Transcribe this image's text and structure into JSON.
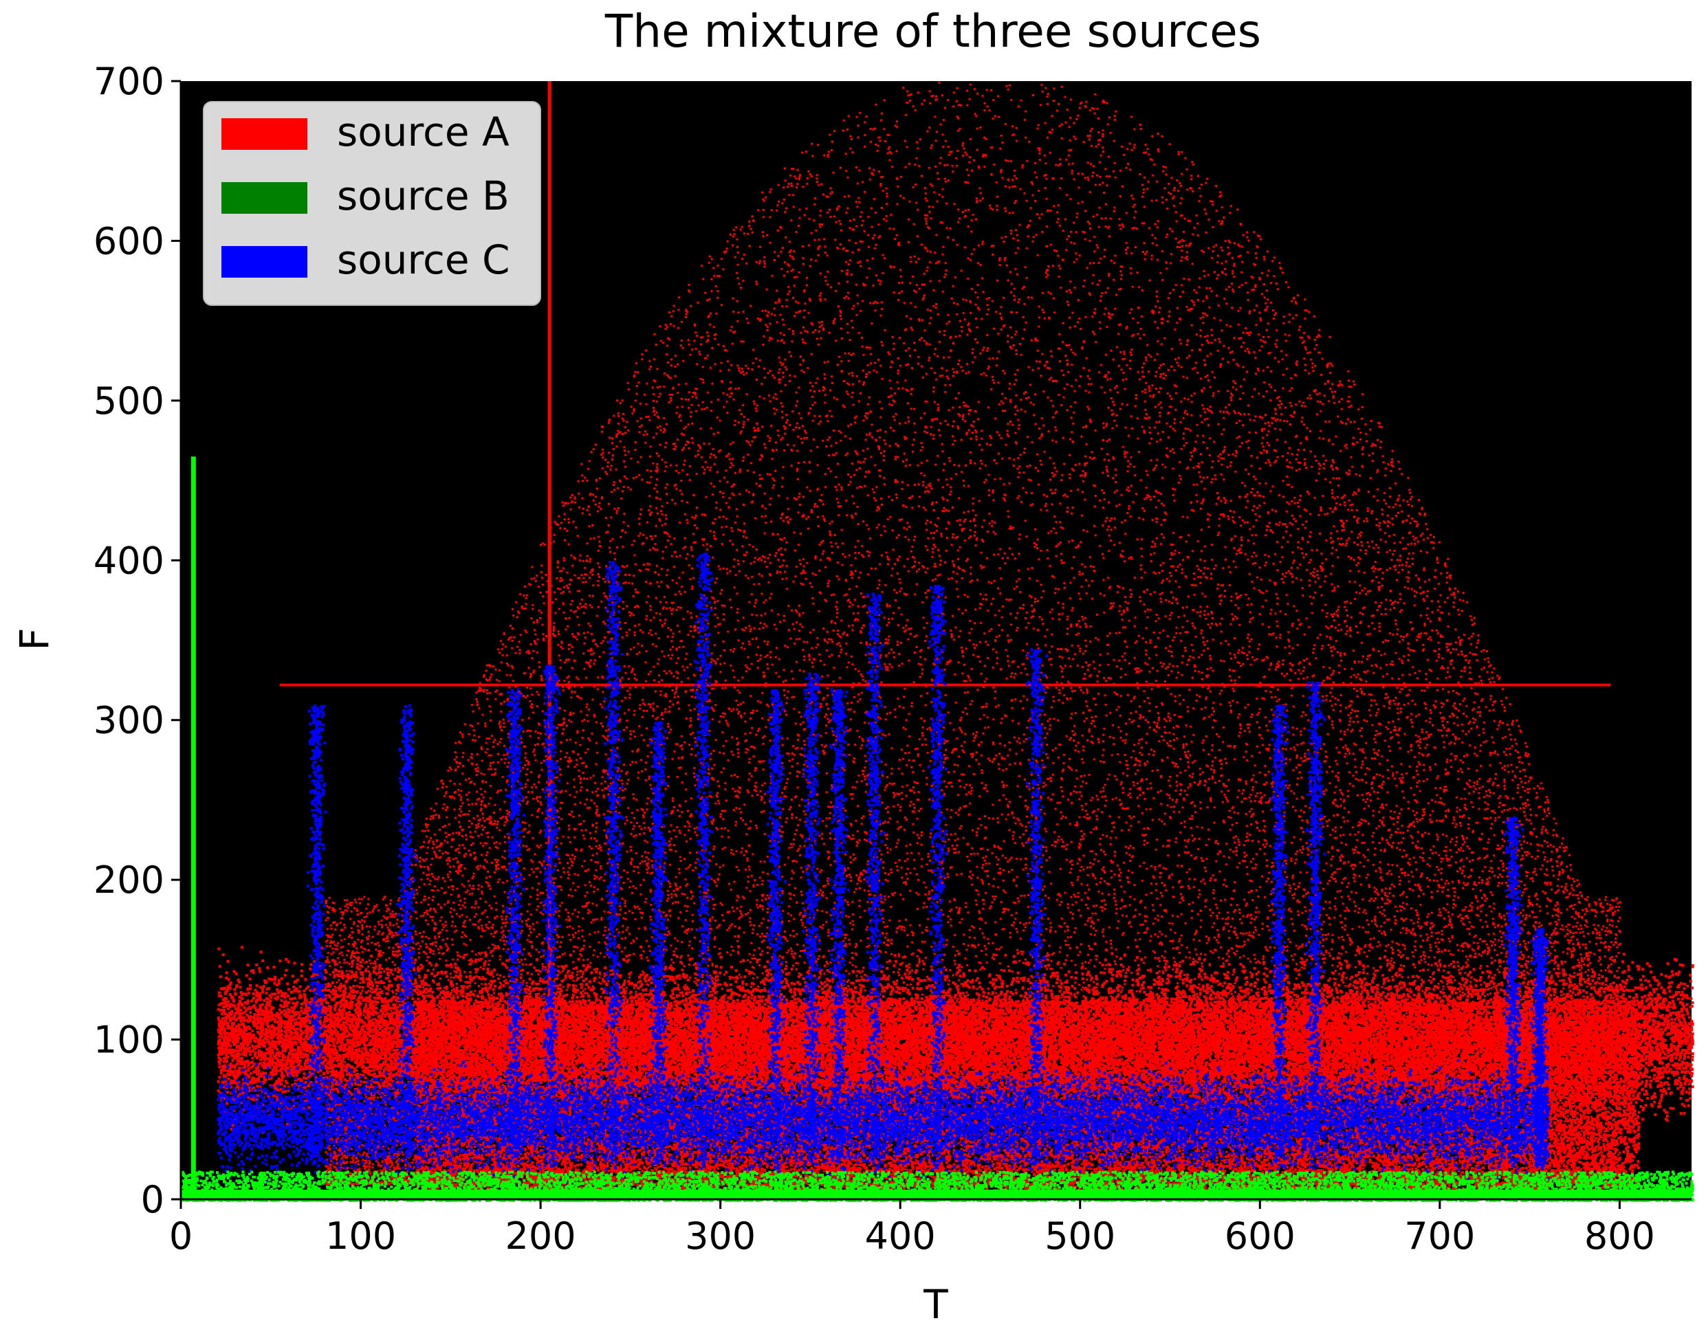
{
  "chart_data": {
    "type": "scatter",
    "title": "The mixture of three sources",
    "xlabel": "T",
    "ylabel": "F",
    "xlim": [
      0,
      840
    ],
    "ylim": [
      0,
      700
    ],
    "xticks": [
      0,
      100,
      200,
      300,
      400,
      500,
      600,
      700,
      800
    ],
    "yticks": [
      0,
      100,
      200,
      300,
      400,
      500,
      600,
      700
    ],
    "background": "#000000",
    "grid": false,
    "legend_position": "top-left",
    "series": [
      {
        "name": "source A",
        "color": "#ff0000",
        "description_of_extent": "dense band around F 70-130 across T 20-840; sparse scatter up to F 700 for T 200-700; horizontal line at F 322 from T 55 to T 795; vertical line at T 205",
        "horizontal_line": {
          "x": [
            55,
            795
          ],
          "y": 322
        },
        "vertical_line": {
          "x": 205,
          "y": [
            0,
            700
          ]
        }
      },
      {
        "name": "source B",
        "color": "#008000",
        "render_color": "#00ff00",
        "description_of_extent": "thin band near F 0-20 across the full T range; vertical spike at T 7 up to F 465",
        "spike": {
          "x": 7,
          "y": [
            0,
            465
          ]
        }
      },
      {
        "name": "source C",
        "color": "#0000ff",
        "description_of_extent": "band around F 20-80 and vertical streaks up to about F 400 between T 20 and T 760",
        "streaks": [
          {
            "x": 75,
            "top": 310
          },
          {
            "x": 125,
            "top": 310
          },
          {
            "x": 185,
            "top": 320
          },
          {
            "x": 205,
            "top": 335
          },
          {
            "x": 240,
            "top": 400
          },
          {
            "x": 265,
            "top": 300
          },
          {
            "x": 290,
            "top": 405
          },
          {
            "x": 330,
            "top": 320
          },
          {
            "x": 350,
            "top": 330
          },
          {
            "x": 365,
            "top": 320
          },
          {
            "x": 385,
            "top": 380
          },
          {
            "x": 420,
            "top": 385
          },
          {
            "x": 475,
            "top": 345
          },
          {
            "x": 610,
            "top": 310
          },
          {
            "x": 630,
            "top": 325
          },
          {
            "x": 740,
            "top": 240
          },
          {
            "x": 755,
            "top": 170
          }
        ]
      }
    ]
  }
}
